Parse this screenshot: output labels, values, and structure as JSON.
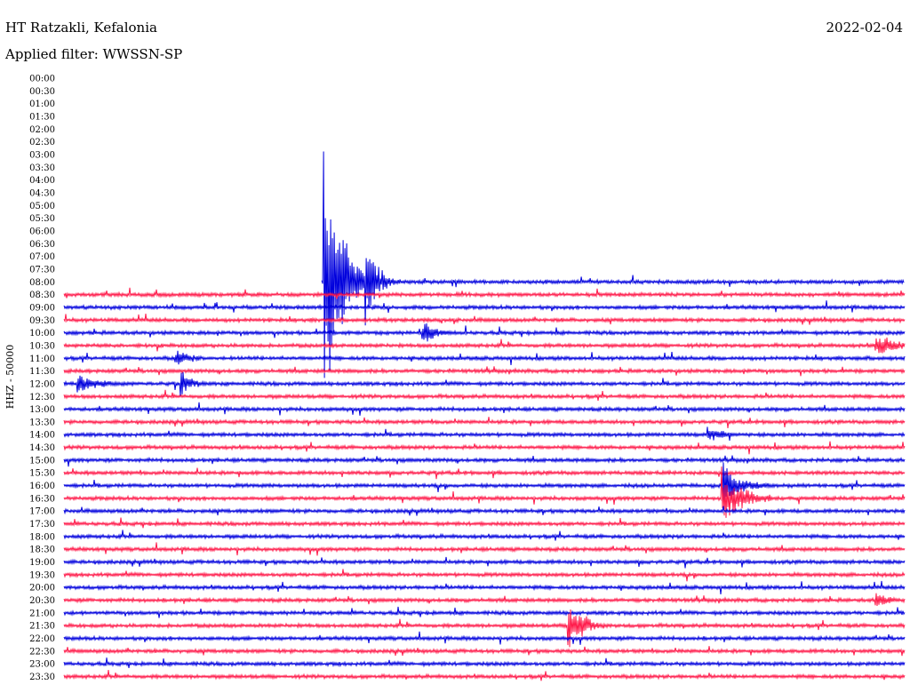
{
  "header": {
    "station": "HT Ratzakli, Kefalonia",
    "date": "2022-02-04",
    "filter": "Applied filter: WWSSN-SP"
  },
  "side_label": "HHZ - 50000",
  "colors": {
    "blue": "#0000dd",
    "red": "#ff1a4a"
  },
  "chart_data": {
    "type": "line",
    "title": "HT Ratzakli, Kefalonia",
    "subtitle": "Applied filter: WWSSN-SP",
    "date": "2022-02-04",
    "ylabel": "HHZ - 50000",
    "rows": [
      "00:00",
      "00:30",
      "01:00",
      "01:30",
      "02:00",
      "02:30",
      "03:00",
      "03:30",
      "04:00",
      "04:30",
      "05:00",
      "05:30",
      "06:00",
      "06:30",
      "07:00",
      "07:30",
      "08:00",
      "08:30",
      "09:00",
      "09:30",
      "10:00",
      "10:30",
      "11:00",
      "11:30",
      "12:00",
      "12:30",
      "13:00",
      "13:30",
      "14:00",
      "14:30",
      "15:00",
      "15:30",
      "16:00",
      "16:30",
      "17:00",
      "17:30",
      "18:00",
      "18:30",
      "19:00",
      "19:30",
      "20:00",
      "20:30",
      "21:00",
      "21:30",
      "22:00",
      "22:30",
      "23:00",
      "23:30"
    ],
    "first_trace_row": "08:00",
    "trace_colors": [
      "#0000dd",
      "#ff1a4a"
    ],
    "grid": false,
    "events": [
      {
        "row": "08:00",
        "minute": 9.3,
        "amplitude": 185,
        "duration": 1.5
      },
      {
        "row": "08:00",
        "minute": 10.0,
        "amplitude": 60,
        "duration": 1.5
      },
      {
        "row": "08:00",
        "minute": 10.8,
        "amplitude": 55,
        "duration": 1.2
      },
      {
        "row": "10:00",
        "minute": 12.8,
        "amplitude": 18,
        "duration": 1.5
      },
      {
        "row": "11:00",
        "minute": 4.0,
        "amplitude": 14,
        "duration": 1.5
      },
      {
        "row": "12:00",
        "minute": 0.5,
        "amplitude": 14,
        "duration": 2.5
      },
      {
        "row": "12:00",
        "minute": 4.2,
        "amplitude": 16,
        "duration": 1.2
      },
      {
        "row": "14:00",
        "minute": 23.0,
        "amplitude": 12,
        "duration": 1.5
      },
      {
        "row": "16:00",
        "minute": 23.5,
        "amplitude": 30,
        "duration": 2.0
      },
      {
        "row": "16:30",
        "minute": 23.5,
        "amplitude": 40,
        "duration": 2.0
      },
      {
        "row": "21:30",
        "minute": 18.0,
        "amplitude": 40,
        "duration": 1.5
      },
      {
        "row": "20:30",
        "minute": 29.0,
        "amplitude": 10,
        "duration": 1.5
      },
      {
        "row": "10:30",
        "minute": 29.0,
        "amplitude": 16,
        "duration": 2.0
      }
    ]
  }
}
